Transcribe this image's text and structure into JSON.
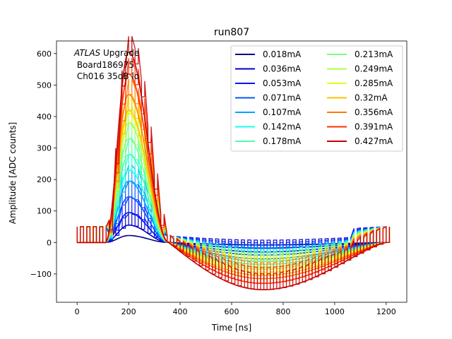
{
  "chart_data": {
    "type": "line",
    "title": "run807",
    "xlabel": "Time [ns]",
    "ylabel": "Amplitude [ADC counts]",
    "xlim": [
      -80,
      1280
    ],
    "ylim": [
      -190,
      640
    ],
    "xticks": [
      0,
      200,
      400,
      600,
      800,
      1000,
      1200
    ],
    "yticks": [
      -100,
      0,
      100,
      200,
      300,
      400,
      500,
      600
    ],
    "grid": false,
    "legend_position": "top-right",
    "legend_columns": 2,
    "annotation": {
      "italic": "ATLAS",
      "rest": " Upgrade",
      "line2": " Board186975",
      "line3": " Ch016 35dB lo"
    },
    "pulse_shape": {
      "description_units": "peak and undershoot amplitudes in ADC counts, times in ns",
      "baseline_start_ns": 110,
      "peak_time_ns": 200,
      "zero_crossing_ns": 355,
      "undershoot_min_ns": 720,
      "recovery_end_ns": 1200,
      "sampling_step_ns": 25
    },
    "series": [
      {
        "name": "0.018mA",
        "color": "#00007f",
        "peak": 22,
        "undershoot": -8,
        "offset": 0
      },
      {
        "name": "0.036mA",
        "color": "#0000c8",
        "peak": 55,
        "undershoot": -18,
        "offset": 50
      },
      {
        "name": "0.053mA",
        "color": "#0010ff",
        "peak": 95,
        "undershoot": -30,
        "offset": 50
      },
      {
        "name": "0.071mA",
        "color": "#0058ff",
        "peak": 145,
        "undershoot": -40,
        "offset": 50
      },
      {
        "name": "0.107mA",
        "color": "#00a4ff",
        "peak": 195,
        "undershoot": -52,
        "offset": 50
      },
      {
        "name": "0.142mA",
        "color": "#19ffe6",
        "peak": 230,
        "undershoot": -60,
        "offset": 50
      },
      {
        "name": "0.178mA",
        "color": "#4dffaa",
        "peak": 280,
        "undershoot": -70,
        "offset": 50
      },
      {
        "name": "0.213mA",
        "color": "#7dff7a",
        "peak": 330,
        "undershoot": -78,
        "offset": 50
      },
      {
        "name": "0.249mA",
        "color": "#b1ff46",
        "peak": 380,
        "undershoot": -85,
        "offset": 50
      },
      {
        "name": "0.285mA",
        "color": "#e6ff11",
        "peak": 410,
        "undershoot": -95,
        "offset": 50
      },
      {
        "name": "0.32mA",
        "color": "#ffc000",
        "peak": 420,
        "undershoot": -105,
        "offset": 50
      },
      {
        "name": "0.356mA",
        "color": "#ff7a00",
        "peak": 470,
        "undershoot": -115,
        "offset": 50
      },
      {
        "name": "0.391mA",
        "color": "#ff2f00",
        "peak": 535,
        "undershoot": -130,
        "offset": 50
      },
      {
        "name": "0.427mA",
        "color": "#c80000",
        "peak": 605,
        "undershoot": -150,
        "offset": 50
      }
    ]
  }
}
